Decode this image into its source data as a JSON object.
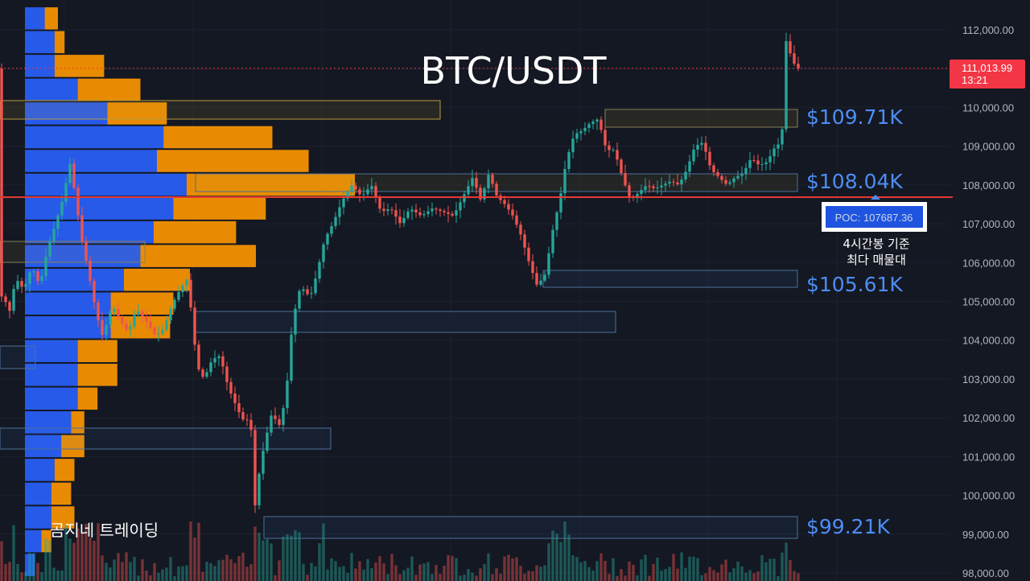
{
  "title": "BTC/USDT",
  "watermark": "곰지네 트레이딩",
  "current_price": {
    "value": "111,013.99",
    "countdown": "13:21",
    "color": "#f23645"
  },
  "poc": {
    "label": "POC: 107687.36",
    "value": 107687.36,
    "note_line1": "4시간봉 기준",
    "note_line2": "최다 매물대"
  },
  "colors": {
    "background": "#141822",
    "up": "#26a69a",
    "down": "#ef5350",
    "accent_blue": "#4d8df5",
    "poc_line": "#e53935",
    "volume_buy": "#2962ff",
    "volume_sell": "#ff9800"
  },
  "levels": [
    {
      "label": "$109.71K",
      "value": 109710
    },
    {
      "label": "$108.04K",
      "value": 108040
    },
    {
      "label": "$105.61K",
      "value": 105610
    },
    {
      "label": "$99.21K",
      "value": 99210
    }
  ],
  "chart_data": {
    "type": "candlestick",
    "title": "BTC/USDT",
    "ylim": [
      97900,
      112600
    ],
    "y_ticks": [
      "112,000.00",
      "111,000.00",
      "110,000.00",
      "109,000.00",
      "108,000.00",
      "107,000.00",
      "106,000.00",
      "105,000.00",
      "104,000.00",
      "103,000.00",
      "102,000.00",
      "101,000.00",
      "100,000.00",
      "99,000.00",
      "98,000.00"
    ],
    "y_tick_values": [
      112000,
      111000,
      110000,
      109000,
      108000,
      107000,
      106000,
      105000,
      104000,
      103000,
      102000,
      101000,
      100000,
      99000,
      98000
    ],
    "path_points": [
      [
        0,
        104900
      ],
      [
        6,
        105200
      ],
      [
        14,
        104700
      ],
      [
        22,
        105600
      ],
      [
        32,
        105300
      ],
      [
        42,
        105900
      ],
      [
        52,
        105400
      ],
      [
        62,
        106400
      ],
      [
        70,
        106900
      ],
      [
        80,
        107600
      ],
      [
        90,
        108600
      ],
      [
        96,
        107700
      ],
      [
        104,
        106600
      ],
      [
        112,
        105800
      ],
      [
        122,
        104700
      ],
      [
        130,
        104100
      ],
      [
        142,
        104900
      ],
      [
        152,
        104500
      ],
      [
        162,
        104200
      ],
      [
        172,
        104800
      ],
      [
        184,
        104500
      ],
      [
        196,
        104100
      ],
      [
        206,
        104300
      ],
      [
        216,
        104900
      ],
      [
        226,
        105300
      ],
      [
        236,
        105600
      ],
      [
        242,
        104300
      ],
      [
        248,
        103300
      ],
      [
        256,
        103000
      ],
      [
        266,
        103500
      ],
      [
        276,
        103600
      ],
      [
        286,
        102800
      ],
      [
        298,
        102200
      ],
      [
        306,
        101900
      ],
      [
        314,
        102000
      ],
      [
        318,
        99500
      ],
      [
        326,
        100800
      ],
      [
        332,
        101400
      ],
      [
        340,
        102100
      ],
      [
        350,
        101800
      ],
      [
        358,
        102600
      ],
      [
        366,
        104500
      ],
      [
        376,
        105400
      ],
      [
        388,
        105100
      ],
      [
        396,
        105700
      ],
      [
        406,
        106600
      ],
      [
        416,
        107000
      ],
      [
        428,
        107600
      ],
      [
        440,
        108000
      ],
      [
        452,
        107700
      ],
      [
        464,
        108000
      ],
      [
        476,
        107300
      ],
      [
        488,
        107400
      ],
      [
        500,
        107000
      ],
      [
        512,
        107400
      ],
      [
        526,
        107200
      ],
      [
        540,
        107400
      ],
      [
        554,
        107300
      ],
      [
        566,
        107200
      ],
      [
        578,
        107700
      ],
      [
        590,
        108200
      ],
      [
        600,
        107600
      ],
      [
        610,
        108300
      ],
      [
        620,
        107700
      ],
      [
        630,
        107500
      ],
      [
        640,
        107200
      ],
      [
        650,
        106700
      ],
      [
        660,
        106000
      ],
      [
        670,
        105400
      ],
      [
        680,
        105700
      ],
      [
        690,
        106900
      ],
      [
        698,
        107600
      ],
      [
        706,
        108600
      ],
      [
        716,
        109300
      ],
      [
        726,
        109400
      ],
      [
        736,
        109600
      ],
      [
        746,
        109700
      ],
      [
        756,
        108900
      ],
      [
        766,
        108900
      ],
      [
        776,
        108200
      ],
      [
        786,
        107600
      ],
      [
        796,
        107800
      ],
      [
        806,
        108000
      ],
      [
        816,
        107900
      ],
      [
        826,
        108000
      ],
      [
        836,
        108100
      ],
      [
        846,
        108000
      ],
      [
        856,
        108400
      ],
      [
        866,
        109000
      ],
      [
        876,
        109100
      ],
      [
        886,
        108400
      ],
      [
        896,
        108200
      ],
      [
        906,
        108000
      ],
      [
        916,
        108200
      ],
      [
        926,
        108300
      ],
      [
        936,
        108700
      ],
      [
        946,
        108500
      ],
      [
        956,
        108600
      ],
      [
        966,
        109000
      ],
      [
        974,
        109100
      ],
      [
        978,
        111800
      ],
      [
        986,
        111300
      ],
      [
        992,
        111000
      ]
    ],
    "volume_profile": {
      "bins_from": 97900,
      "bins_to": 112600,
      "bins": 24,
      "buy": [
        3,
        5,
        8,
        8,
        9,
        11,
        14,
        16,
        16,
        16,
        26,
        26,
        30,
        35,
        39,
        45,
        49,
        40,
        42,
        25,
        16,
        9,
        9,
        6
      ],
      "sell": [
        0,
        3,
        7,
        6,
        6,
        7,
        4,
        6,
        12,
        12,
        18,
        19,
        20,
        35,
        25,
        28,
        51,
        46,
        33,
        18,
        19,
        15,
        3,
        4
      ]
    }
  }
}
